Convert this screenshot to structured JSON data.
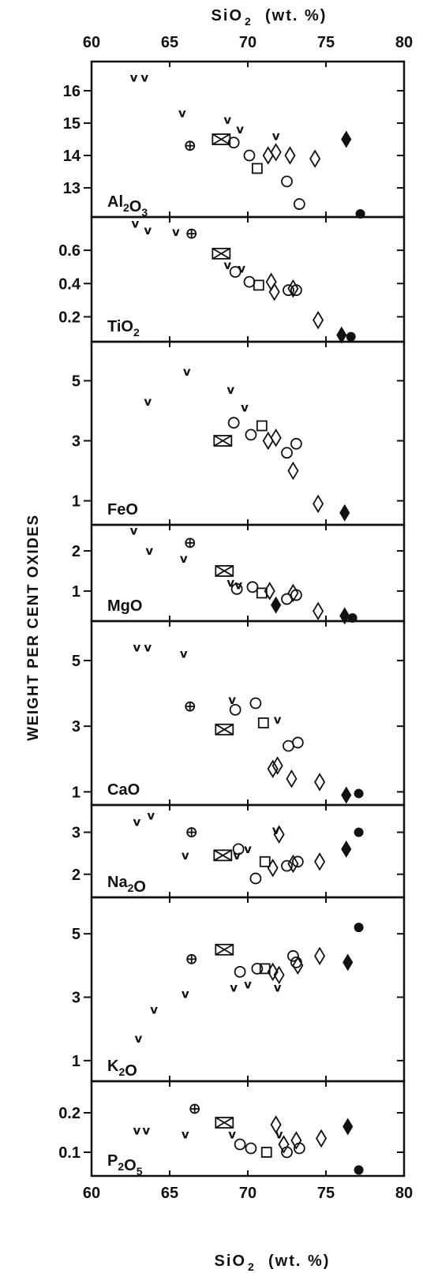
{
  "figure": {
    "y_axis_label": "WEIGHT PER CENT OXIDES",
    "top_axis_label": "SiO",
    "top_axis_sub": "2",
    "top_axis_unit": "(wt. %)",
    "bottom_axis_label": "SiO",
    "bottom_axis_sub": "2",
    "bottom_axis_unit": "(wt. %)"
  },
  "chart_data": {
    "type": "scatter",
    "x_ticks": [
      60,
      65,
      70,
      75,
      80
    ],
    "xlim": [
      60,
      80
    ],
    "symbol_types": [
      "v",
      "crossed-circle",
      "crossed-box",
      "open-circle",
      "open-square",
      "open-diamond",
      "filled-diamond",
      "filled-circle"
    ],
    "panels": [
      {
        "id": "al2o3",
        "label_main": "Al",
        "label_sub": "2",
        "label_main2": "O",
        "label_sub2": "3",
        "ylim": [
          12.1,
          16.9
        ],
        "y_ticks": [
          13,
          14,
          15,
          16
        ],
        "points": [
          {
            "s": "v",
            "x": 62.7,
            "y": 16.4
          },
          {
            "s": "v",
            "x": 63.4,
            "y": 16.4
          },
          {
            "s": "v",
            "x": 65.8,
            "y": 15.3
          },
          {
            "s": "v",
            "x": 68.7,
            "y": 15.1
          },
          {
            "s": "v",
            "x": 69.5,
            "y": 14.8
          },
          {
            "s": "v",
            "x": 71.8,
            "y": 14.6
          },
          {
            "s": "crossed-circle",
            "x": 66.3,
            "y": 14.3
          },
          {
            "s": "crossed-box",
            "x": 68.3,
            "y": 14.5
          },
          {
            "s": "open-circle",
            "x": 69.1,
            "y": 14.4
          },
          {
            "s": "open-circle",
            "x": 70.1,
            "y": 14.0
          },
          {
            "s": "open-circle",
            "x": 72.5,
            "y": 13.2
          },
          {
            "s": "open-circle",
            "x": 73.3,
            "y": 12.5
          },
          {
            "s": "open-square",
            "x": 70.6,
            "y": 13.6
          },
          {
            "s": "open-diamond",
            "x": 71.3,
            "y": 14.0
          },
          {
            "s": "open-diamond",
            "x": 71.8,
            "y": 14.1
          },
          {
            "s": "open-diamond",
            "x": 72.7,
            "y": 14.0
          },
          {
            "s": "open-diamond",
            "x": 74.3,
            "y": 13.9
          },
          {
            "s": "filled-diamond",
            "x": 76.3,
            "y": 14.5
          },
          {
            "s": "filled-circle",
            "x": 77.2,
            "y": 12.1
          }
        ]
      },
      {
        "id": "tio2",
        "label_main": "TiO",
        "label_sub": "2",
        "ylim": [
          0.05,
          0.8
        ],
        "y_ticks": [
          0.2,
          0.4,
          0.6
        ],
        "points": [
          {
            "s": "v",
            "x": 62.8,
            "y": 0.76
          },
          {
            "s": "v",
            "x": 63.6,
            "y": 0.72
          },
          {
            "s": "v",
            "x": 65.4,
            "y": 0.71
          },
          {
            "s": "v",
            "x": 68.7,
            "y": 0.51
          },
          {
            "s": "v",
            "x": 69.6,
            "y": 0.49
          },
          {
            "s": "crossed-circle",
            "x": 66.4,
            "y": 0.7
          },
          {
            "s": "crossed-box",
            "x": 68.3,
            "y": 0.58
          },
          {
            "s": "open-circle",
            "x": 69.2,
            "y": 0.47
          },
          {
            "s": "open-circle",
            "x": 70.1,
            "y": 0.41
          },
          {
            "s": "open-circle",
            "x": 72.6,
            "y": 0.36
          },
          {
            "s": "open-circle",
            "x": 73.1,
            "y": 0.36
          },
          {
            "s": "open-square",
            "x": 70.7,
            "y": 0.39
          },
          {
            "s": "open-diamond",
            "x": 71.5,
            "y": 0.41
          },
          {
            "s": "open-diamond",
            "x": 71.7,
            "y": 0.35
          },
          {
            "s": "open-diamond",
            "x": 72.9,
            "y": 0.37
          },
          {
            "s": "open-diamond",
            "x": 74.5,
            "y": 0.18
          },
          {
            "s": "filled-diamond",
            "x": 76.0,
            "y": 0.09
          },
          {
            "s": "filled-circle",
            "x": 76.6,
            "y": 0.08
          }
        ]
      },
      {
        "id": "feo",
        "label_main": "FeO",
        "label_sub": "",
        "ylim": [
          0.2,
          6.3
        ],
        "y_ticks": [
          1,
          3,
          5
        ],
        "points": [
          {
            "s": "v",
            "x": 63.6,
            "y": 4.3
          },
          {
            "s": "v",
            "x": 66.1,
            "y": 5.3
          },
          {
            "s": "v",
            "x": 68.9,
            "y": 4.7
          },
          {
            "s": "v",
            "x": 69.8,
            "y": 4.1
          },
          {
            "s": "crossed-box",
            "x": 68.4,
            "y": 3.0
          },
          {
            "s": "open-circle",
            "x": 69.1,
            "y": 3.6
          },
          {
            "s": "open-circle",
            "x": 70.2,
            "y": 3.2
          },
          {
            "s": "open-circle",
            "x": 72.5,
            "y": 2.6
          },
          {
            "s": "open-circle",
            "x": 73.1,
            "y": 2.9
          },
          {
            "s": "open-square",
            "x": 70.9,
            "y": 3.5
          },
          {
            "s": "open-diamond",
            "x": 71.3,
            "y": 3.0
          },
          {
            "s": "open-diamond",
            "x": 71.8,
            "y": 3.1
          },
          {
            "s": "open-diamond",
            "x": 72.9,
            "y": 2.0
          },
          {
            "s": "open-diamond",
            "x": 74.5,
            "y": 0.9
          },
          {
            "s": "filled-diamond",
            "x": 76.2,
            "y": 0.6
          }
        ]
      },
      {
        "id": "mgo",
        "label_main": "MgO",
        "label_sub": "",
        "ylim": [
          0.25,
          2.65
        ],
        "y_ticks": [
          1,
          2
        ],
        "points": [
          {
            "s": "v",
            "x": 62.7,
            "y": 2.5
          },
          {
            "s": "v",
            "x": 63.7,
            "y": 2.0
          },
          {
            "s": "v",
            "x": 65.9,
            "y": 1.8
          },
          {
            "s": "v",
            "x": 68.9,
            "y": 1.2
          },
          {
            "s": "v",
            "x": 69.4,
            "y": 1.15
          },
          {
            "s": "crossed-circle",
            "x": 66.3,
            "y": 2.2
          },
          {
            "s": "crossed-box",
            "x": 68.5,
            "y": 1.5
          },
          {
            "s": "open-circle",
            "x": 69.3,
            "y": 1.05
          },
          {
            "s": "open-circle",
            "x": 70.3,
            "y": 1.1
          },
          {
            "s": "open-circle",
            "x": 72.5,
            "y": 0.8
          },
          {
            "s": "open-circle",
            "x": 73.1,
            "y": 0.9
          },
          {
            "s": "open-square",
            "x": 70.9,
            "y": 0.95
          },
          {
            "s": "open-diamond",
            "x": 71.4,
            "y": 1.0
          },
          {
            "s": "open-diamond",
            "x": 72.9,
            "y": 0.95
          },
          {
            "s": "open-diamond",
            "x": 74.5,
            "y": 0.5
          },
          {
            "s": "filled-diamond",
            "x": 71.8,
            "y": 0.65
          },
          {
            "s": "filled-diamond",
            "x": 76.2,
            "y": 0.38
          },
          {
            "s": "filled-circle",
            "x": 76.7,
            "y": 0.3
          }
        ]
      },
      {
        "id": "cao",
        "label_main": "CaO",
        "label_sub": "",
        "ylim": [
          0.6,
          6.2
        ],
        "y_ticks": [
          1,
          3,
          5
        ],
        "points": [
          {
            "s": "v",
            "x": 62.9,
            "y": 5.4
          },
          {
            "s": "v",
            "x": 63.6,
            "y": 5.4
          },
          {
            "s": "v",
            "x": 65.9,
            "y": 5.2
          },
          {
            "s": "v",
            "x": 69.0,
            "y": 3.8
          },
          {
            "s": "v",
            "x": 71.9,
            "y": 3.2
          },
          {
            "s": "crossed-circle",
            "x": 66.3,
            "y": 3.6
          },
          {
            "s": "crossed-box",
            "x": 68.5,
            "y": 2.9
          },
          {
            "s": "open-circle",
            "x": 69.2,
            "y": 3.5
          },
          {
            "s": "open-circle",
            "x": 70.5,
            "y": 3.7
          },
          {
            "s": "open-circle",
            "x": 72.6,
            "y": 2.4
          },
          {
            "s": "open-circle",
            "x": 73.2,
            "y": 2.5
          },
          {
            "s": "open-square",
            "x": 71.0,
            "y": 3.1
          },
          {
            "s": "open-diamond",
            "x": 71.6,
            "y": 1.7
          },
          {
            "s": "open-diamond",
            "x": 71.9,
            "y": 1.8
          },
          {
            "s": "open-diamond",
            "x": 72.8,
            "y": 1.4
          },
          {
            "s": "open-diamond",
            "x": 74.6,
            "y": 1.3
          },
          {
            "s": "filled-diamond",
            "x": 76.3,
            "y": 0.9
          },
          {
            "s": "filled-circle",
            "x": 77.1,
            "y": 0.95
          }
        ]
      },
      {
        "id": "na2o",
        "label_main": "Na",
        "label_sub": "2",
        "label_main2": "O",
        "label_sub2": "",
        "ylim": [
          1.45,
          3.65
        ],
        "y_ticks": [
          2,
          3
        ],
        "points": [
          {
            "s": "v",
            "x": 62.9,
            "y": 3.25
          },
          {
            "s": "v",
            "x": 63.8,
            "y": 3.4
          },
          {
            "s": "v",
            "x": 66.0,
            "y": 2.45
          },
          {
            "s": "v",
            "x": 69.3,
            "y": 2.45
          },
          {
            "s": "v",
            "x": 70.0,
            "y": 2.6
          },
          {
            "s": "v",
            "x": 71.8,
            "y": 3.05
          },
          {
            "s": "crossed-circle",
            "x": 66.4,
            "y": 3.0
          },
          {
            "s": "crossed-box",
            "x": 68.4,
            "y": 2.45
          },
          {
            "s": "open-circle",
            "x": 69.4,
            "y": 2.6
          },
          {
            "s": "open-circle",
            "x": 70.5,
            "y": 1.9
          },
          {
            "s": "open-circle",
            "x": 72.5,
            "y": 2.2
          },
          {
            "s": "open-circle",
            "x": 73.2,
            "y": 2.3
          },
          {
            "s": "open-square",
            "x": 71.1,
            "y": 2.3
          },
          {
            "s": "open-diamond",
            "x": 71.6,
            "y": 2.15
          },
          {
            "s": "open-diamond",
            "x": 72.0,
            "y": 2.95
          },
          {
            "s": "open-diamond",
            "x": 72.9,
            "y": 2.25
          },
          {
            "s": "open-diamond",
            "x": 74.6,
            "y": 2.3
          },
          {
            "s": "filled-diamond",
            "x": 76.3,
            "y": 2.6
          },
          {
            "s": "filled-circle",
            "x": 77.1,
            "y": 3.0
          }
        ]
      },
      {
        "id": "k2o",
        "label_main": "K",
        "label_sub": "2",
        "label_main2": "O",
        "label_sub2": "",
        "ylim": [
          0.35,
          6.15
        ],
        "y_ticks": [
          1,
          3,
          5
        ],
        "points": [
          {
            "s": "v",
            "x": 63.0,
            "y": 1.7
          },
          {
            "s": "v",
            "x": 64.0,
            "y": 2.6
          },
          {
            "s": "v",
            "x": 66.0,
            "y": 3.1
          },
          {
            "s": "v",
            "x": 69.1,
            "y": 3.3
          },
          {
            "s": "v",
            "x": 70.0,
            "y": 3.4
          },
          {
            "s": "v",
            "x": 71.9,
            "y": 3.3
          },
          {
            "s": "crossed-circle",
            "x": 66.4,
            "y": 4.2
          },
          {
            "s": "crossed-box",
            "x": 68.5,
            "y": 4.5
          },
          {
            "s": "open-circle",
            "x": 69.5,
            "y": 3.8
          },
          {
            "s": "open-circle",
            "x": 70.6,
            "y": 3.9
          },
          {
            "s": "open-circle",
            "x": 72.9,
            "y": 4.3
          },
          {
            "s": "open-circle",
            "x": 73.1,
            "y": 4.1
          },
          {
            "s": "open-square",
            "x": 71.1,
            "y": 3.9
          },
          {
            "s": "open-diamond",
            "x": 71.6,
            "y": 3.8
          },
          {
            "s": "open-diamond",
            "x": 72.0,
            "y": 3.7
          },
          {
            "s": "open-diamond",
            "x": 73.2,
            "y": 4.0
          },
          {
            "s": "open-diamond",
            "x": 74.6,
            "y": 4.3
          },
          {
            "s": "filled-diamond",
            "x": 76.4,
            "y": 4.1
          },
          {
            "s": "filled-circle",
            "x": 77.1,
            "y": 5.2
          }
        ]
      },
      {
        "id": "p2o5",
        "label_main": "P",
        "label_sub": "2",
        "label_main2": "O",
        "label_sub2": "5",
        "ylim": [
          0.04,
          0.28
        ],
        "y_ticks": [
          0.1,
          0.2
        ],
        "points": [
          {
            "s": "v",
            "x": 62.9,
            "y": 0.155
          },
          {
            "s": "v",
            "x": 63.5,
            "y": 0.155
          },
          {
            "s": "v",
            "x": 66.0,
            "y": 0.145
          },
          {
            "s": "v",
            "x": 69.0,
            "y": 0.145
          },
          {
            "s": "v",
            "x": 72.0,
            "y": 0.145
          },
          {
            "s": "crossed-circle",
            "x": 66.6,
            "y": 0.21
          },
          {
            "s": "crossed-box",
            "x": 68.5,
            "y": 0.175
          },
          {
            "s": "open-circle",
            "x": 69.5,
            "y": 0.12
          },
          {
            "s": "open-circle",
            "x": 70.2,
            "y": 0.11
          },
          {
            "s": "open-circle",
            "x": 72.5,
            "y": 0.1
          },
          {
            "s": "open-circle",
            "x": 73.3,
            "y": 0.11
          },
          {
            "s": "open-square",
            "x": 71.2,
            "y": 0.1
          },
          {
            "s": "open-diamond",
            "x": 71.8,
            "y": 0.17
          },
          {
            "s": "open-diamond",
            "x": 72.3,
            "y": 0.12
          },
          {
            "s": "open-diamond",
            "x": 73.1,
            "y": 0.13
          },
          {
            "s": "open-diamond",
            "x": 74.7,
            "y": 0.135
          },
          {
            "s": "filled-diamond",
            "x": 76.4,
            "y": 0.165
          },
          {
            "s": "filled-circle",
            "x": 77.1,
            "y": 0.055
          }
        ]
      }
    ]
  }
}
